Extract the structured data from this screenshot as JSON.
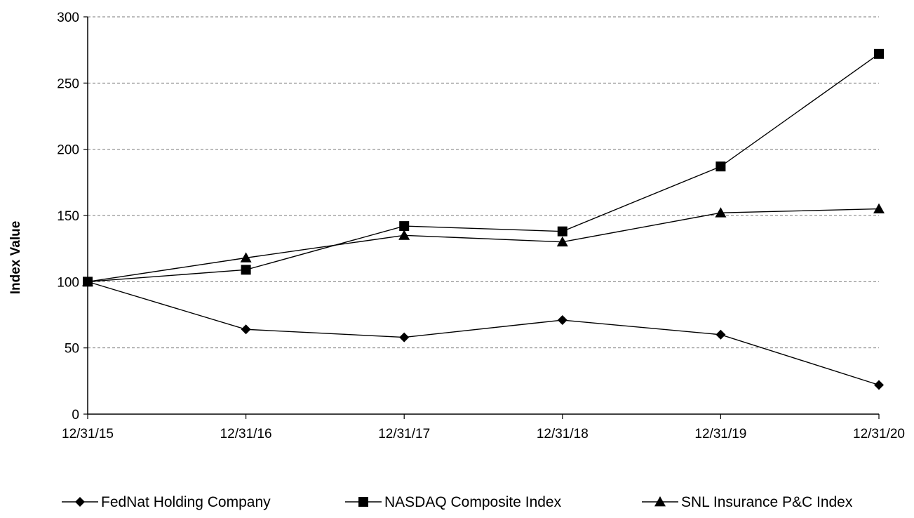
{
  "chart_data": {
    "type": "line",
    "title": "",
    "xlabel": "",
    "ylabel": "Index Value",
    "categories": [
      "12/31/15",
      "12/31/16",
      "12/31/17",
      "12/31/18",
      "12/31/19",
      "12/31/20"
    ],
    "ylim": [
      0,
      300
    ],
    "yticks": [
      0,
      50,
      100,
      150,
      200,
      250,
      300
    ],
    "grid": "horizontal-dashed",
    "legend_position": "bottom",
    "series": [
      {
        "name": "FedNat Holding Company",
        "marker": "diamond",
        "values": [
          100,
          64,
          58,
          71,
          60,
          22
        ]
      },
      {
        "name": "NASDAQ Composite Index",
        "marker": "square",
        "values": [
          100,
          109,
          142,
          138,
          187,
          272
        ]
      },
      {
        "name": "SNL Insurance P&C Index",
        "marker": "triangle",
        "values": [
          100,
          118,
          135,
          130,
          152,
          155
        ]
      }
    ]
  }
}
